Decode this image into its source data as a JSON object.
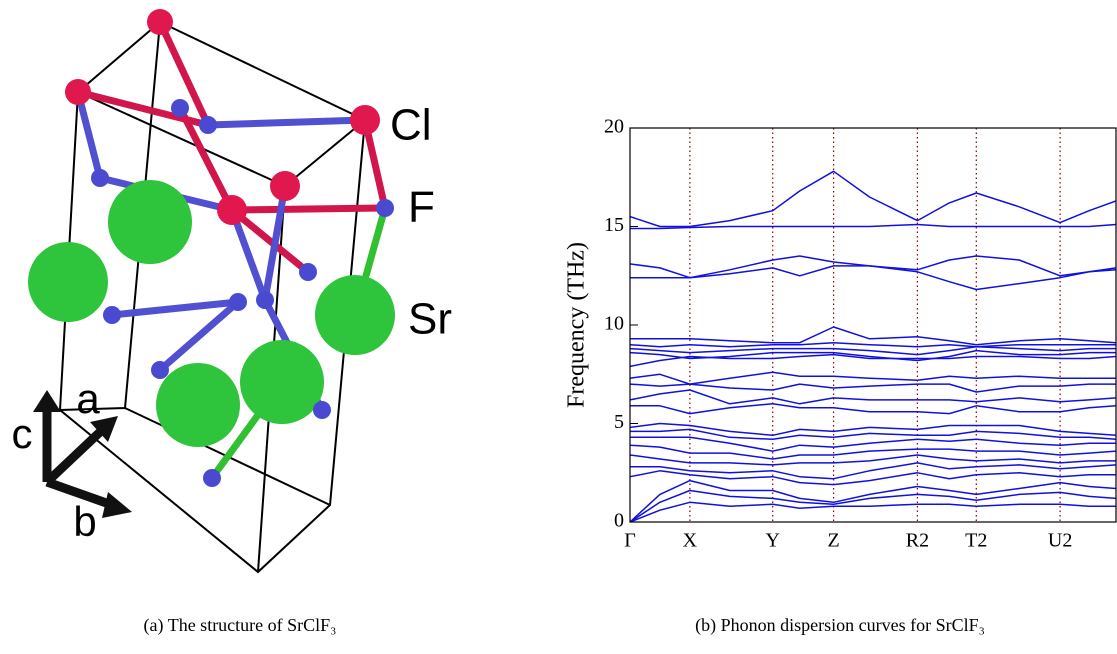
{
  "structure": {
    "labels": {
      "cl": "Cl",
      "f": "F",
      "sr": "Sr"
    },
    "axes": {
      "a": "a",
      "b": "b",
      "c": "c"
    },
    "caption": "(a) The structure of SrClF₃"
  },
  "chart_data": {
    "type": "line",
    "caption": "(b) Phonon dispersion curves for SrClF₃",
    "y_label": "Frequency (THz)",
    "x": [
      0,
      0.3,
      0.6,
      1.0,
      1.43,
      1.7,
      2.04,
      2.4,
      2.88,
      3.2,
      3.47,
      3.9,
      4.31,
      4.6,
      4.87
    ],
    "xlim": [
      0,
      4.87
    ],
    "xticks": [
      {
        "value": 0,
        "label": "Γ"
      },
      {
        "value": 0.6,
        "label": "X"
      },
      {
        "value": 1.43,
        "label": "Y"
      },
      {
        "value": 2.04,
        "label": "Z"
      },
      {
        "value": 2.88,
        "label": "R2"
      },
      {
        "value": 3.47,
        "label": "T2"
      },
      {
        "value": 4.31,
        "label": "U2"
      }
    ],
    "ylim": [
      0,
      20
    ],
    "yticks": [
      0,
      5,
      10,
      15,
      20
    ],
    "vgrid": true,
    "color": "#1010e0",
    "grid_color": "#8b0000",
    "series": [
      {
        "values": [
          15.5,
          15.0,
          15.0,
          15.3,
          15.8,
          16.8,
          17.8,
          16.5,
          15.3,
          16.2,
          16.7,
          16.0,
          15.2,
          15.8,
          16.3
        ]
      },
      {
        "values": [
          14.9,
          14.9,
          14.95,
          15.0,
          15.0,
          15.0,
          15.0,
          15.0,
          15.1,
          15.0,
          15.0,
          15.0,
          15.0,
          15.0,
          15.1
        ]
      },
      {
        "values": [
          13.1,
          12.9,
          12.4,
          12.8,
          13.3,
          13.5,
          13.2,
          13.0,
          12.8,
          13.3,
          13.5,
          13.3,
          12.5,
          12.7,
          12.9
        ]
      },
      {
        "values": [
          12.4,
          12.4,
          12.4,
          12.6,
          12.9,
          12.5,
          13.0,
          13.0,
          12.7,
          12.2,
          11.8,
          12.1,
          12.4,
          12.7,
          12.8
        ]
      },
      {
        "values": [
          9.3,
          9.3,
          9.3,
          9.2,
          9.1,
          9.1,
          9.9,
          9.3,
          9.4,
          9.2,
          9.0,
          9.2,
          9.3,
          9.2,
          9.1
        ]
      },
      {
        "values": [
          9.0,
          8.9,
          9.0,
          8.9,
          9.0,
          9.0,
          9.1,
          9.0,
          8.9,
          9.0,
          8.9,
          9.0,
          9.0,
          9.0,
          9.0
        ]
      },
      {
        "values": [
          8.8,
          8.7,
          8.6,
          8.7,
          8.8,
          8.8,
          8.8,
          8.7,
          8.5,
          8.7,
          8.9,
          8.8,
          8.7,
          8.8,
          8.8
        ]
      },
      {
        "values": [
          8.6,
          8.5,
          8.3,
          8.4,
          8.6,
          8.6,
          8.6,
          8.4,
          8.2,
          8.4,
          8.7,
          8.5,
          8.5,
          8.6,
          8.6
        ]
      },
      {
        "values": [
          7.9,
          8.2,
          8.4,
          8.3,
          8.3,
          8.4,
          8.5,
          8.3,
          8.3,
          8.3,
          8.4,
          8.4,
          8.3,
          8.3,
          8.4
        ]
      },
      {
        "values": [
          7.3,
          7.5,
          7.0,
          7.3,
          7.6,
          7.4,
          7.4,
          7.3,
          7.2,
          7.4,
          7.3,
          7.4,
          7.3,
          7.3,
          7.3
        ]
      },
      {
        "values": [
          7.0,
          6.9,
          7.0,
          6.8,
          6.7,
          7.0,
          6.8,
          6.9,
          7.0,
          7.0,
          6.6,
          6.9,
          6.9,
          7.0,
          7.0
        ]
      },
      {
        "values": [
          6.2,
          6.5,
          6.7,
          6.0,
          6.3,
          6.0,
          6.3,
          6.2,
          6.2,
          6.2,
          6.1,
          6.3,
          6.1,
          6.2,
          6.3
        ]
      },
      {
        "values": [
          5.9,
          5.9,
          5.5,
          5.8,
          6.0,
          5.8,
          5.8,
          5.6,
          5.6,
          5.5,
          5.9,
          5.6,
          5.6,
          5.8,
          5.9
        ]
      },
      {
        "values": [
          4.8,
          5.0,
          4.9,
          4.6,
          4.4,
          4.7,
          4.6,
          4.8,
          4.7,
          4.9,
          4.9,
          4.9,
          4.6,
          4.5,
          4.4
        ]
      },
      {
        "values": [
          4.6,
          4.6,
          4.7,
          4.3,
          4.2,
          4.4,
          4.3,
          4.5,
          4.4,
          4.4,
          4.6,
          4.5,
          4.3,
          4.3,
          4.2
        ]
      },
      {
        "values": [
          4.3,
          4.3,
          4.3,
          4.0,
          3.6,
          3.9,
          3.8,
          4.0,
          4.2,
          4.1,
          4.2,
          4.0,
          3.9,
          4.0,
          4.0
        ]
      },
      {
        "values": [
          3.9,
          3.8,
          3.5,
          3.5,
          3.2,
          3.4,
          3.4,
          3.6,
          3.7,
          3.7,
          3.6,
          3.6,
          3.4,
          3.5,
          3.6
        ]
      },
      {
        "values": [
          3.4,
          3.2,
          3.0,
          3.0,
          2.9,
          3.0,
          3.0,
          3.1,
          3.4,
          3.2,
          3.1,
          3.2,
          3.0,
          3.1,
          3.1
        ]
      },
      {
        "values": [
          2.8,
          2.8,
          2.6,
          2.5,
          2.6,
          2.3,
          2.2,
          2.6,
          3.0,
          2.7,
          2.8,
          2.9,
          2.7,
          2.8,
          2.9
        ]
      },
      {
        "values": [
          2.3,
          2.6,
          2.4,
          2.2,
          2.3,
          2.0,
          1.9,
          2.1,
          2.5,
          2.2,
          2.4,
          2.5,
          2.3,
          2.4,
          2.4
        ]
      },
      {
        "values": [
          0,
          1.4,
          2.1,
          1.6,
          1.6,
          1.2,
          1.0,
          1.4,
          1.8,
          1.6,
          1.4,
          1.7,
          2.0,
          1.8,
          1.7
        ]
      },
      {
        "values": [
          0,
          1.0,
          1.6,
          1.3,
          1.2,
          1.0,
          0.9,
          1.2,
          1.4,
          1.3,
          1.1,
          1.4,
          1.5,
          1.3,
          1.2
        ]
      },
      {
        "values": [
          0,
          0.6,
          1.0,
          0.8,
          0.9,
          0.7,
          0.8,
          0.8,
          0.9,
          0.9,
          0.8,
          0.9,
          0.9,
          0.8,
          0.8
        ]
      }
    ]
  }
}
